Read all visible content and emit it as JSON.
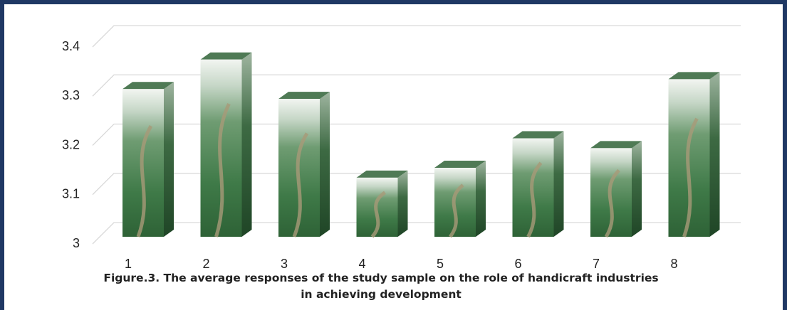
{
  "chart_data": {
    "type": "bar3d",
    "title": "Figure.3. The average responses of the study sample on the role of handicraft industries in achieving development",
    "categories": [
      "1",
      "2",
      "3",
      "4",
      "5",
      "6",
      "7",
      "8"
    ],
    "values": [
      3.3,
      3.36,
      3.28,
      3.12,
      3.14,
      3.2,
      3.18,
      3.32
    ],
    "ylim": [
      3,
      3.4
    ],
    "yticks": [
      3,
      3.1,
      3.2,
      3.3,
      3.4
    ],
    "grid": true
  }
}
